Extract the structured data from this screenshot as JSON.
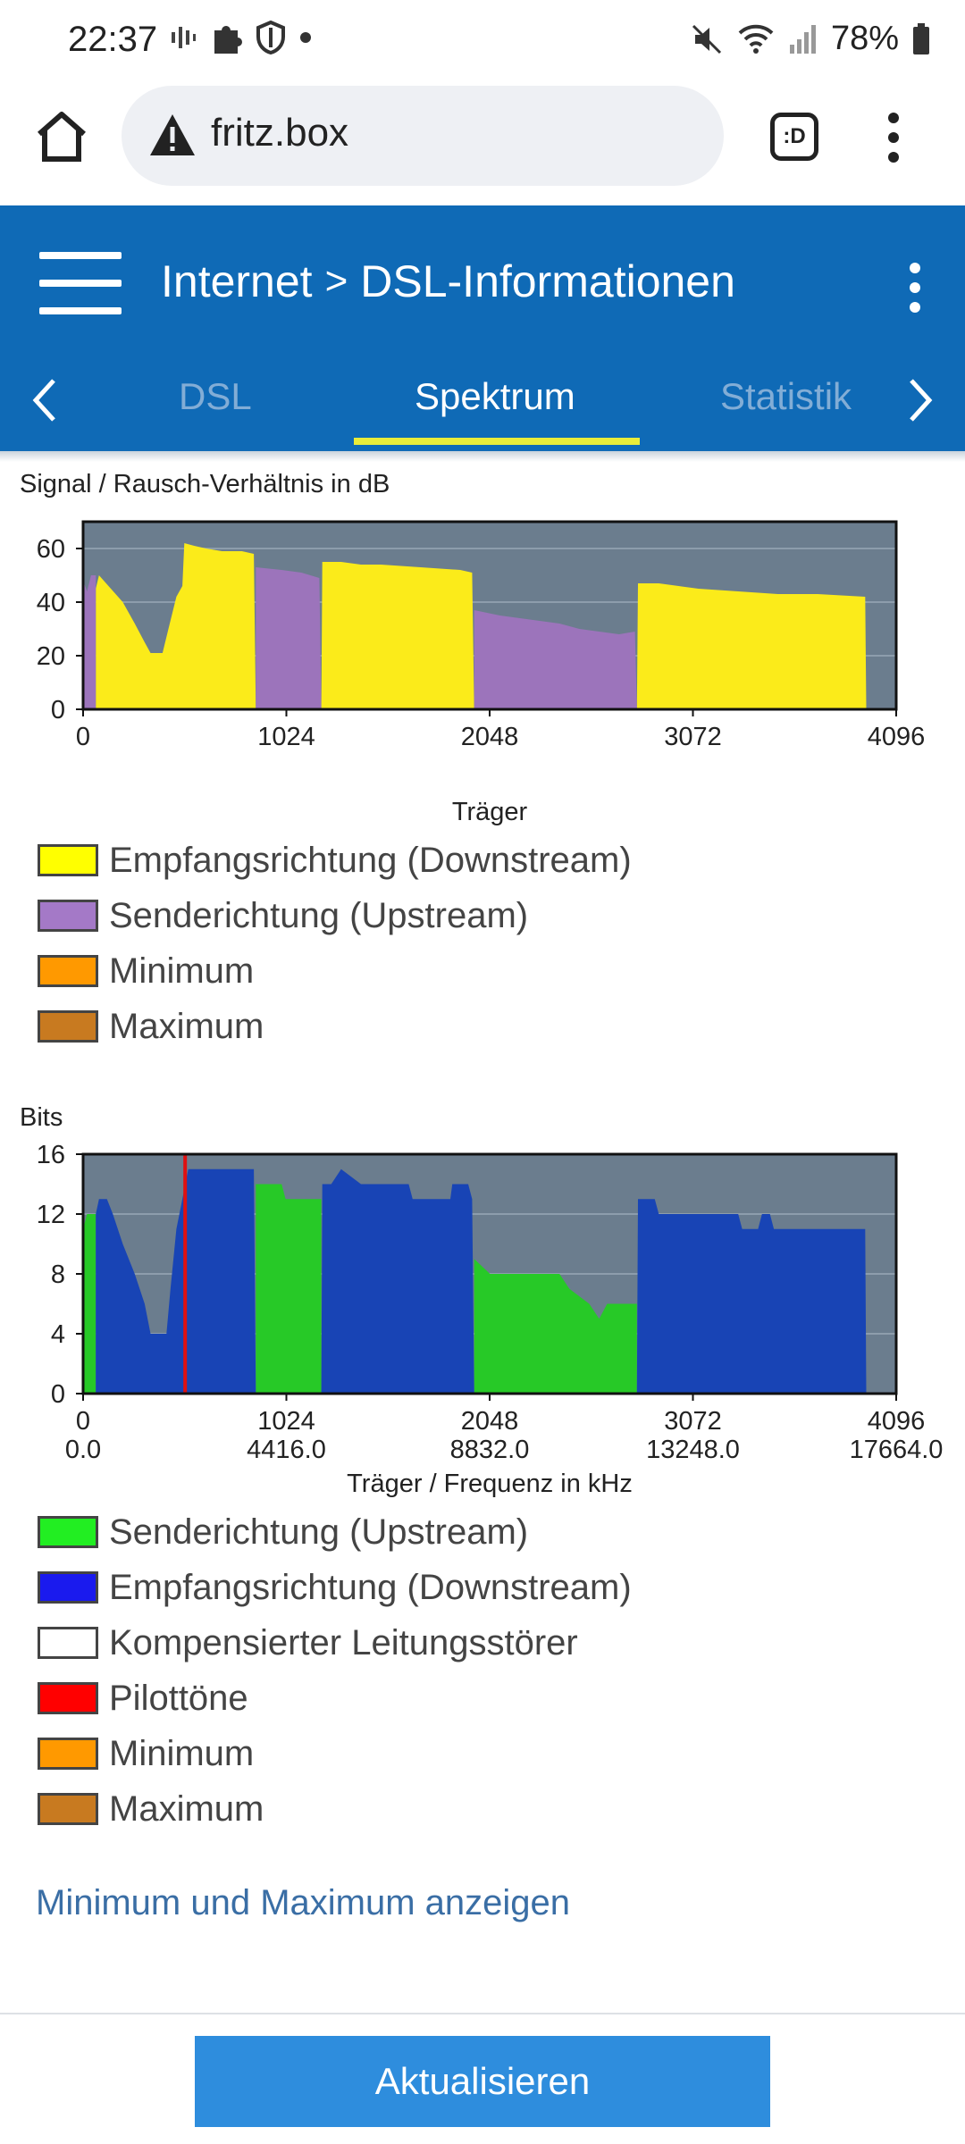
{
  "status_bar": {
    "time": "22:37",
    "battery": "78%"
  },
  "browser": {
    "url": "fritz.box",
    "tab_switch_label": ":D"
  },
  "header": {
    "breadcrumb_root": "Internet",
    "breadcrumb_separator": ">",
    "breadcrumb_page": "DSL-Informationen",
    "tabs": [
      {
        "label": "DSL"
      },
      {
        "label": "Spektrum"
      },
      {
        "label": "Statistik"
      }
    ],
    "active_tab": "Spektrum"
  },
  "snr_chart": {
    "title": "Signal / Rausch-Verhältnis in dB",
    "legend": [
      {
        "label": "Empfangsrichtung (Downstream)",
        "color": "#ffff00"
      },
      {
        "label": "Senderichtung (Upstream)",
        "color": "#a479c7"
      },
      {
        "label": "Minimum",
        "color": "#ff9900"
      },
      {
        "label": "Maximum",
        "color": "#c87a20"
      }
    ]
  },
  "bits_chart": {
    "title": "Bits",
    "legend": [
      {
        "label": "Senderichtung (Upstream)",
        "color": "#22ee22"
      },
      {
        "label": "Empfangsrichtung (Downstream)",
        "color": "#1a1aee"
      },
      {
        "label": "Kompensierter Leitungsstörer",
        "color": "#ffffff"
      },
      {
        "label": "Pilottöne",
        "color": "#ff0000"
      },
      {
        "label": "Minimum",
        "color": "#ff9900"
      },
      {
        "label": "Maximum",
        "color": "#c87a20"
      }
    ]
  },
  "chart_data": [
    {
      "type": "area",
      "title": "Signal / Rausch-Verhältnis in dB",
      "xlabel": "Träger",
      "ylabel": "",
      "xlim": [
        0,
        4096
      ],
      "ylim": [
        0,
        70
      ],
      "xticks": [
        "0",
        "1024",
        "2048",
        "3072",
        "4096"
      ],
      "yticks": [
        "0",
        "20",
        "40",
        "60"
      ],
      "grid": true,
      "series": [
        {
          "name": "Empfangsrichtung (Downstream)",
          "color": "#fbeb1a",
          "points": [
            [
              64,
              45
            ],
            [
              80,
              50
            ],
            [
              140,
              45
            ],
            [
              200,
              40
            ],
            [
              260,
              32
            ],
            [
              310,
              25
            ],
            [
              340,
              21
            ],
            [
              400,
              21
            ],
            [
              430,
              30
            ],
            [
              470,
              42
            ],
            [
              500,
              46
            ],
            [
              510,
              62
            ],
            [
              560,
              61
            ],
            [
              620,
              60
            ],
            [
              700,
              59
            ],
            [
              800,
              59
            ],
            [
              860,
              58
            ],
            [
              870,
              0
            ],
            [
              1200,
              0
            ],
            [
              1205,
              55
            ],
            [
              1300,
              55
            ],
            [
              1400,
              54
            ],
            [
              1500,
              54
            ],
            [
              1700,
              53
            ],
            [
              1900,
              52
            ],
            [
              1960,
              51
            ],
            [
              1970,
              0
            ],
            [
              2790,
              0
            ],
            [
              2795,
              47
            ],
            [
              2900,
              47
            ],
            [
              3000,
              46
            ],
            [
              3100,
              45
            ],
            [
              3300,
              44
            ],
            [
              3500,
              43
            ],
            [
              3700,
              43
            ],
            [
              3940,
              42
            ],
            [
              3945,
              0
            ]
          ]
        },
        {
          "name": "Senderichtung (Upstream)",
          "color": "#9c74bb",
          "points": [
            [
              0,
              48
            ],
            [
              20,
              44
            ],
            [
              40,
              50
            ],
            [
              64,
              50
            ],
            [
              64,
              0
            ],
            [
              870,
              0
            ],
            [
              870,
              53
            ],
            [
              1000,
              52
            ],
            [
              1100,
              51
            ],
            [
              1190,
              49
            ],
            [
              1200,
              0
            ],
            [
              1970,
              0
            ],
            [
              1970,
              37
            ],
            [
              2100,
              35
            ],
            [
              2300,
              33
            ],
            [
              2400,
              32
            ],
            [
              2500,
              30
            ],
            [
              2600,
              29
            ],
            [
              2700,
              28
            ],
            [
              2780,
              29
            ],
            [
              2790,
              0
            ]
          ]
        }
      ]
    },
    {
      "type": "area",
      "title": "Bits",
      "xlabel": "Träger / Frequenz in kHz",
      "ylabel": "",
      "xlim": [
        0,
        4096
      ],
      "ylim": [
        0,
        16
      ],
      "xticks": [
        "0",
        "1024",
        "2048",
        "3072",
        "4096"
      ],
      "xticks_secondary": [
        "0.0",
        "4416.0",
        "8832.0",
        "13248.0",
        "17664.0"
      ],
      "yticks": [
        "0",
        "4",
        "8",
        "12",
        "16"
      ],
      "grid": true,
      "pilot_tone_carrier": 514,
      "series": [
        {
          "name": "Senderichtung (Upstream)",
          "color": "#27c927",
          "points": [
            [
              0,
              11
            ],
            [
              20,
              12
            ],
            [
              64,
              12
            ],
            [
              64,
              0
            ],
            [
              870,
              0
            ],
            [
              870,
              14
            ],
            [
              1000,
              14
            ],
            [
              1020,
              13
            ],
            [
              1200,
              13
            ],
            [
              1200,
              0
            ],
            [
              1970,
              0
            ],
            [
              1970,
              9
            ],
            [
              2050,
              8
            ],
            [
              2400,
              8
            ],
            [
              2450,
              7
            ],
            [
              2550,
              6
            ],
            [
              2600,
              5
            ],
            [
              2640,
              6
            ],
            [
              2790,
              6
            ],
            [
              2790,
              0
            ]
          ]
        },
        {
          "name": "Empfangsrichtung (Downstream)",
          "color": "#1844b5",
          "points": [
            [
              64,
              12
            ],
            [
              80,
              13
            ],
            [
              120,
              13
            ],
            [
              150,
              12
            ],
            [
              200,
              10
            ],
            [
              260,
              8
            ],
            [
              310,
              6
            ],
            [
              340,
              4
            ],
            [
              420,
              4
            ],
            [
              440,
              7
            ],
            [
              470,
              11
            ],
            [
              500,
              13
            ],
            [
              530,
              15
            ],
            [
              600,
              15
            ],
            [
              860,
              15
            ],
            [
              870,
              0
            ],
            [
              1200,
              0
            ],
            [
              1205,
              14
            ],
            [
              1250,
              14
            ],
            [
              1300,
              15
            ],
            [
              1400,
              14
            ],
            [
              1640,
              14
            ],
            [
              1660,
              13
            ],
            [
              1850,
              13
            ],
            [
              1860,
              14
            ],
            [
              1940,
              14
            ],
            [
              1960,
              13
            ],
            [
              1970,
              0
            ],
            [
              2790,
              0
            ],
            [
              2795,
              13
            ],
            [
              2880,
              13
            ],
            [
              2900,
              12
            ],
            [
              3300,
              12
            ],
            [
              3320,
              11
            ],
            [
              3400,
              11
            ],
            [
              3420,
              12
            ],
            [
              3460,
              12
            ],
            [
              3480,
              11
            ],
            [
              3940,
              11
            ],
            [
              3945,
              0
            ]
          ]
        }
      ]
    }
  ],
  "link_min_max": "Minimum und Maximum anzeigen",
  "refresh_button": "Aktualisieren"
}
